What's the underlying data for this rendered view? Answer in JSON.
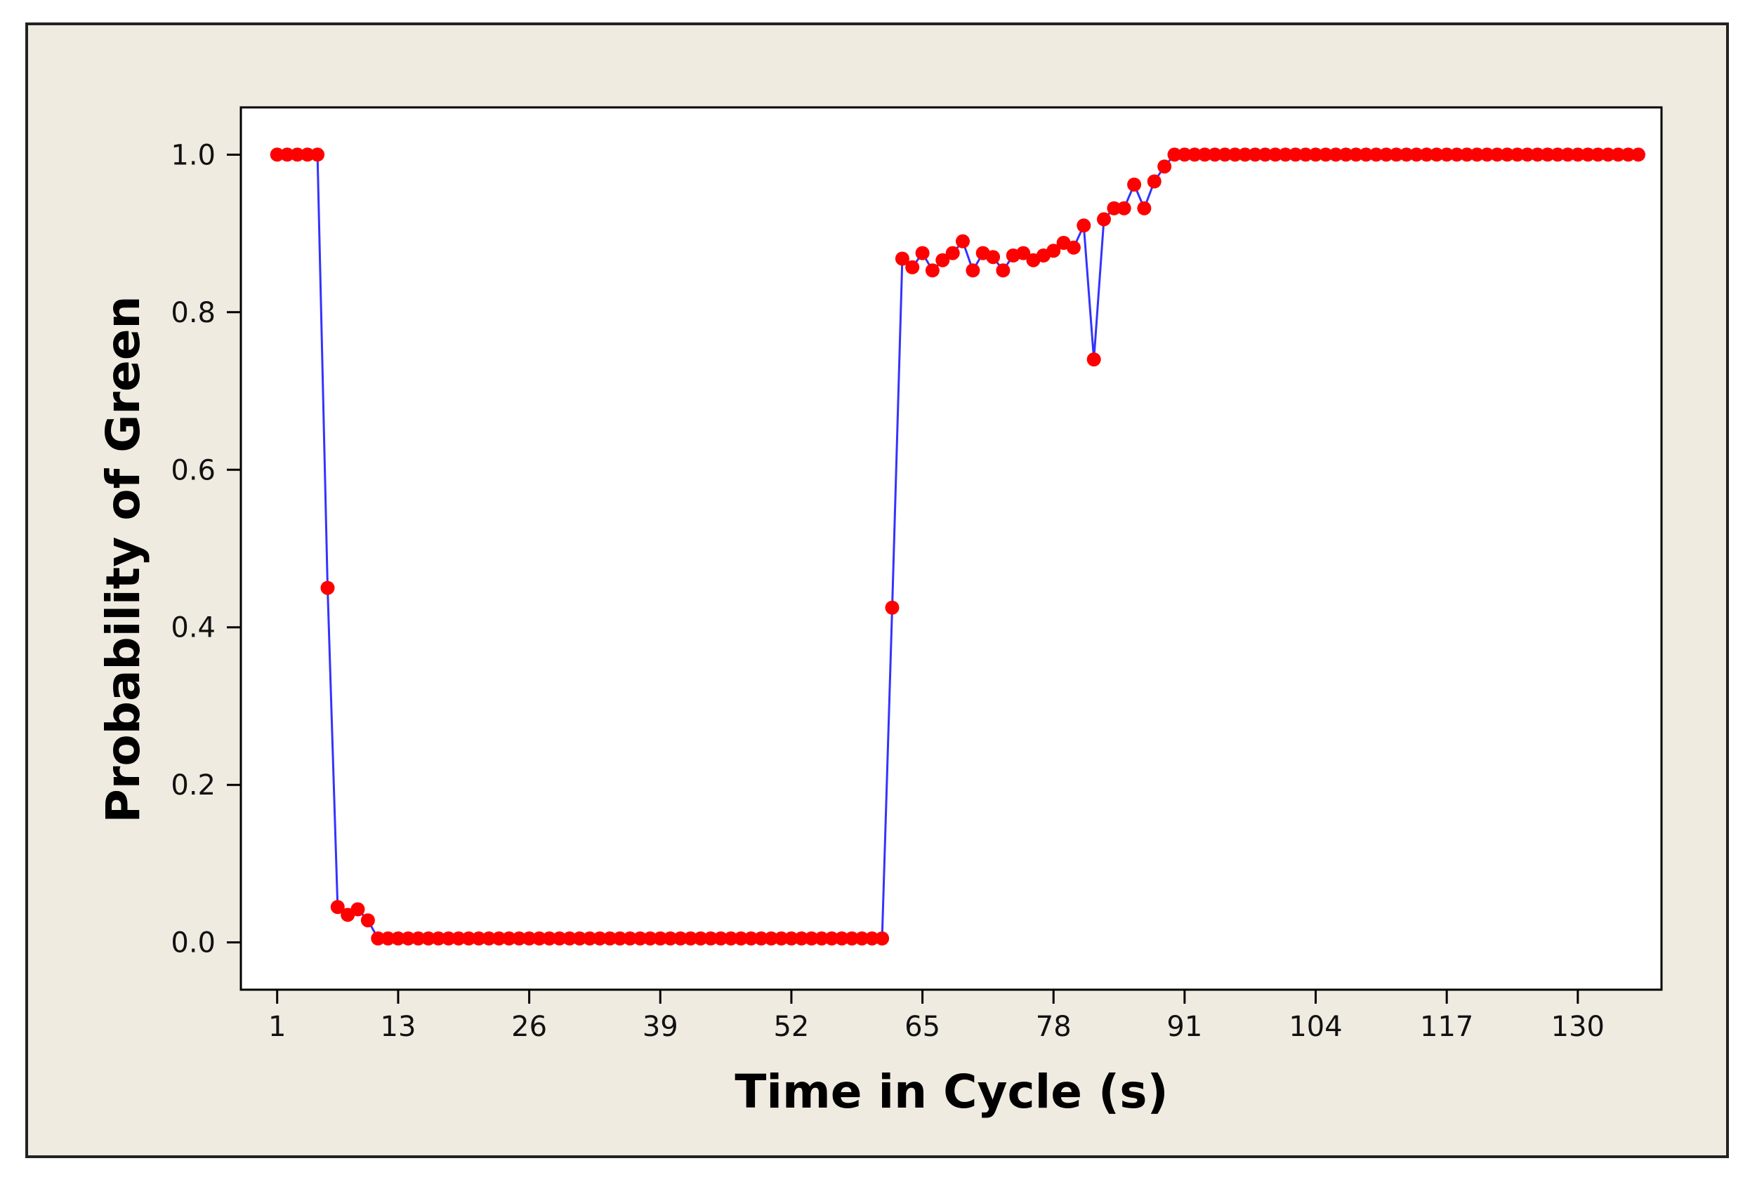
{
  "chart_data": {
    "type": "scatter",
    "title": "",
    "xlabel": "Time in Cycle (s)",
    "ylabel": "Probability of Green",
    "xlim": [
      -2.6,
      138.3
    ],
    "ylim": [
      -0.06,
      1.06
    ],
    "x_ticks": [
      1,
      13,
      26,
      39,
      52,
      65,
      78,
      91,
      104,
      117,
      130
    ],
    "y_ticks": [
      "0.0",
      "0.2",
      "0.4",
      "0.6",
      "0.8",
      "1.0"
    ],
    "grid": false,
    "legend": "none",
    "series": [
      {
        "marker_color": "#ff0000",
        "line_color": "#3333ff",
        "x": [
          1,
          2,
          3,
          4,
          5,
          6,
          7,
          8,
          9,
          10,
          11,
          12,
          13,
          14,
          15,
          16,
          17,
          18,
          19,
          20,
          21,
          22,
          23,
          24,
          25,
          26,
          27,
          28,
          29,
          30,
          31,
          32,
          33,
          34,
          35,
          36,
          37,
          38,
          39,
          40,
          41,
          42,
          43,
          44,
          45,
          46,
          47,
          48,
          49,
          50,
          51,
          52,
          53,
          54,
          55,
          56,
          57,
          58,
          59,
          60,
          61,
          62,
          63,
          64,
          65,
          66,
          67,
          68,
          69,
          70,
          71,
          72,
          73,
          74,
          75,
          76,
          77,
          78,
          79,
          80,
          81,
          82,
          83,
          84,
          85,
          86,
          87,
          88,
          89,
          90,
          91,
          92,
          93,
          94,
          95,
          96,
          97,
          98,
          99,
          100,
          101,
          102,
          103,
          104,
          105,
          106,
          107,
          108,
          109,
          110,
          111,
          112,
          113,
          114,
          115,
          116,
          117,
          118,
          119,
          120,
          121,
          122,
          123,
          124,
          125,
          126,
          127,
          128,
          129,
          130,
          131,
          132,
          133,
          134,
          135,
          136
        ],
        "y": [
          1.0,
          1.0,
          1.0,
          1.0,
          1.0,
          0.45,
          0.045,
          0.035,
          0.042,
          0.028,
          0.005,
          0.005,
          0.005,
          0.005,
          0.005,
          0.005,
          0.005,
          0.005,
          0.005,
          0.005,
          0.005,
          0.005,
          0.005,
          0.005,
          0.005,
          0.005,
          0.005,
          0.005,
          0.005,
          0.005,
          0.005,
          0.005,
          0.005,
          0.005,
          0.005,
          0.005,
          0.005,
          0.005,
          0.005,
          0.005,
          0.005,
          0.005,
          0.005,
          0.005,
          0.005,
          0.005,
          0.005,
          0.005,
          0.005,
          0.005,
          0.005,
          0.005,
          0.005,
          0.005,
          0.005,
          0.005,
          0.005,
          0.005,
          0.005,
          0.005,
          0.005,
          0.425,
          0.868,
          0.857,
          0.875,
          0.853,
          0.866,
          0.875,
          0.89,
          0.853,
          0.875,
          0.87,
          0.853,
          0.872,
          0.875,
          0.866,
          0.872,
          0.878,
          0.888,
          0.882,
          0.91,
          0.74,
          0.918,
          0.932,
          0.932,
          0.962,
          0.932,
          0.966,
          0.985,
          1.0,
          1.0,
          1.0,
          1.0,
          1.0,
          1.0,
          1.0,
          1.0,
          1.0,
          1.0,
          1.0,
          1.0,
          1.0,
          1.0,
          1.0,
          1.0,
          1.0,
          1.0,
          1.0,
          1.0,
          1.0,
          1.0,
          1.0,
          1.0,
          1.0,
          1.0,
          1.0,
          1.0,
          1.0,
          1.0,
          1.0,
          1.0,
          1.0,
          1.0,
          1.0,
          1.0,
          1.0,
          1.0,
          1.0,
          1.0,
          1.0,
          1.0,
          1.0,
          1.0,
          1.0,
          1.0,
          1.0
        ]
      }
    ]
  },
  "colors": {
    "outer_background": "#f0ebe1",
    "outer_border": "#222222",
    "plot_background": "#ffffff",
    "axis": "#000000"
  }
}
